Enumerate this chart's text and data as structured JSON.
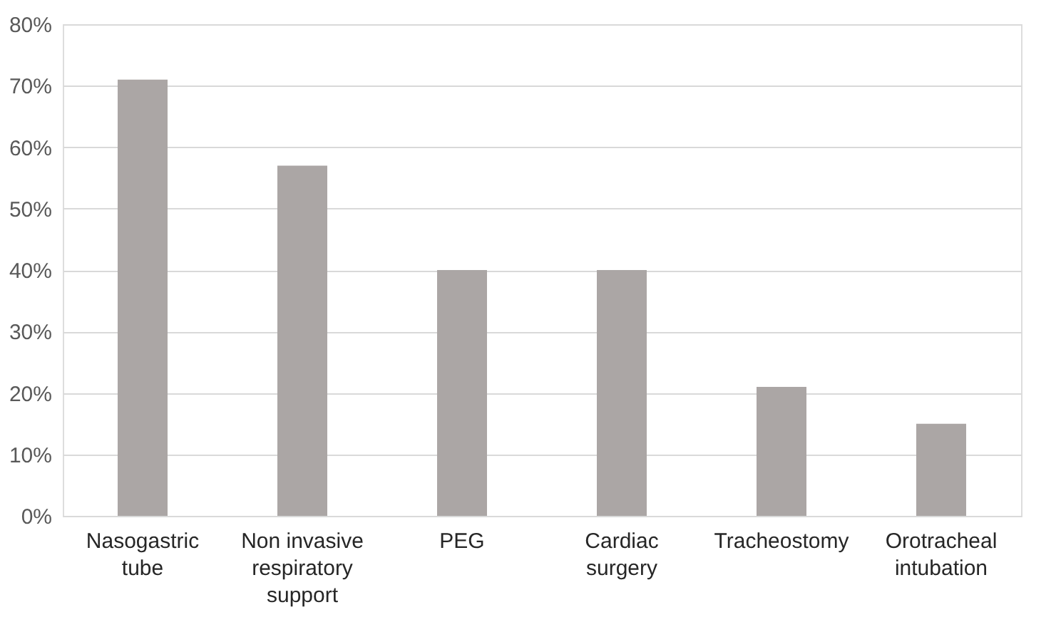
{
  "chart_data": {
    "type": "bar",
    "categories": [
      "Nasogastric tube",
      "Non invasive respiratory support",
      "PEG",
      "Cardiac surgery",
      "Tracheostomy",
      "Orotracheal intubation"
    ],
    "values": [
      71,
      57,
      40,
      40,
      21,
      15
    ],
    "color": "#aba6a5",
    "ylim": [
      0,
      80
    ],
    "yticks": [
      {
        "value": 0,
        "label": "0%"
      },
      {
        "value": 10,
        "label": "10%"
      },
      {
        "value": 20,
        "label": "20%"
      },
      {
        "value": 30,
        "label": "30%"
      },
      {
        "value": 40,
        "label": "40%"
      },
      {
        "value": 50,
        "label": "50%"
      },
      {
        "value": 60,
        "label": "60%"
      },
      {
        "value": 70,
        "label": "70%"
      },
      {
        "value": 80,
        "label": "80%"
      }
    ],
    "grid": "y"
  }
}
